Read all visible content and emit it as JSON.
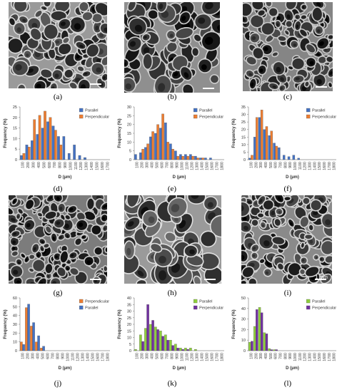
{
  "photos": [
    {
      "label": "(a)",
      "scale_text": ""
    },
    {
      "label": "(b)",
      "scale_text": ""
    },
    {
      "label": "(c)",
      "scale_text": ""
    },
    {
      "label": "(g)",
      "scale_text": ""
    },
    {
      "label": "(h)",
      "scale_text": ""
    },
    {
      "label": "(i)",
      "scale_text": "1 mm"
    }
  ],
  "chart_data": [
    {
      "panel": "(d)",
      "type": "bar",
      "xlabel": "D (µm)",
      "ylabel": "Frequency (%)",
      "ylim": [
        0,
        25
      ],
      "yticks": [
        0,
        5,
        10,
        15,
        20,
        25
      ],
      "categories": [
        "100",
        "200",
        "300",
        "400",
        "500",
        "600",
        "700",
        "800",
        "900",
        "1000",
        "1100",
        "1200",
        "1300",
        "1400",
        "1500",
        "1600",
        "1700"
      ],
      "legend": "top-right",
      "series": [
        {
          "name": "Parallel",
          "color": "#4472c4",
          "values": [
            2,
            7,
            9,
            12,
            15,
            18,
            16,
            11,
            11,
            3,
            7,
            2,
            1,
            0,
            0,
            0,
            0
          ]
        },
        {
          "name": "Perpendicular",
          "color": "#ed7d31",
          "values": [
            3,
            6,
            19,
            21,
            23,
            20,
            14,
            7,
            0,
            0,
            0,
            0,
            0,
            0,
            0,
            0,
            0
          ]
        }
      ],
      "legend_order": [
        0,
        1
      ]
    },
    {
      "panel": "(e)",
      "type": "bar",
      "xlabel": "D (µm)",
      "ylabel": "Frequency (%)",
      "ylim": [
        0,
        30
      ],
      "yticks": [
        0,
        5,
        10,
        15,
        20,
        25,
        30
      ],
      "categories": [
        "100",
        "200",
        "300",
        "400",
        "500",
        "600",
        "700",
        "800",
        "900",
        "1000",
        "1100",
        "1200",
        "1300",
        "1400",
        "1500",
        "1600",
        "1700",
        "1800"
      ],
      "legend": "top-right",
      "series": [
        {
          "name": "Parallel",
          "color": "#4472c4",
          "values": [
            3,
            4,
            7,
            13,
            15,
            18,
            21,
            9,
            5,
            3,
            3,
            3,
            2,
            1,
            1,
            1,
            0,
            0
          ]
        },
        {
          "name": "Perpendicular",
          "color": "#ed7d31",
          "values": [
            0,
            6,
            9,
            16,
            20,
            26,
            10,
            6,
            2,
            2,
            2,
            2,
            1,
            1,
            0,
            0,
            0,
            0
          ]
        }
      ],
      "legend_order": [
        0,
        1
      ]
    },
    {
      "panel": "(f)",
      "type": "bar",
      "xlabel": "D (µm)",
      "ylabel": "Frequency (%)",
      "ylim": [
        0,
        35
      ],
      "yticks": [
        0,
        5,
        10,
        15,
        20,
        25,
        30,
        35
      ],
      "categories": [
        "100",
        "200",
        "300",
        "400",
        "500",
        "600",
        "700",
        "800",
        "900",
        "1000",
        "1100",
        "1200",
        "1300",
        "1400",
        "1500",
        "1600",
        "1700",
        "1800"
      ],
      "legend": "top-right",
      "series": [
        {
          "name": "Parallel",
          "color": "#4472c4",
          "values": [
            1,
            15,
            28,
            20,
            16,
            11,
            8,
            3,
            2,
            3,
            1,
            0,
            0,
            0,
            0,
            0,
            0,
            0
          ]
        },
        {
          "name": "Perpendicular",
          "color": "#ed7d31",
          "values": [
            3,
            28,
            33,
            22,
            19,
            9,
            0,
            0,
            0,
            0,
            0,
            0,
            0,
            0,
            0,
            0,
            0,
            0
          ]
        }
      ],
      "legend_order": [
        0,
        1
      ]
    },
    {
      "panel": "(j)",
      "type": "bar",
      "xlabel": "D (µm)",
      "ylabel": "Frequency (%)",
      "ylim": [
        0,
        60
      ],
      "yticks": [
        0,
        10,
        20,
        30,
        40,
        50,
        60
      ],
      "categories": [
        "100",
        "200",
        "300",
        "400",
        "500",
        "600",
        "700",
        "800",
        "900",
        "1000",
        "1100",
        "1200",
        "1300",
        "1400",
        "1500",
        "1600",
        "1700",
        "1800"
      ],
      "legend": "top-right",
      "series": [
        {
          "name": "Perpendicular",
          "color": "#ed7d31",
          "values": [
            10,
            49,
            28,
            10,
            3,
            0,
            0,
            0,
            0,
            0,
            0,
            0,
            0,
            0,
            0,
            0,
            0,
            0
          ]
        },
        {
          "name": "Parallel",
          "color": "#4472c4",
          "values": [
            7,
            53,
            32,
            17,
            5,
            0,
            0,
            0,
            0,
            0,
            0,
            0,
            0,
            0,
            0,
            0,
            0,
            0
          ]
        }
      ],
      "legend_order": [
        0,
        1
      ]
    },
    {
      "panel": "(k)",
      "type": "bar",
      "xlabel": "D (µm)",
      "ylabel": "Frequency (%)",
      "ylim": [
        0,
        40
      ],
      "yticks": [
        0,
        5,
        10,
        15,
        20,
        25,
        30,
        35,
        40
      ],
      "categories": [
        "100",
        "200",
        "300",
        "400",
        "500",
        "600",
        "700",
        "800",
        "900",
        "1000",
        "1100",
        "1200",
        "1300",
        "1400",
        "1500",
        "1600",
        "1700",
        "1800"
      ],
      "legend": "top-right",
      "series": [
        {
          "name": "Parallel",
          "color": "#8fcf3c",
          "values": [
            1,
            12,
            17,
            20,
            18,
            15,
            12,
            8,
            5,
            2,
            2,
            2,
            1,
            0,
            0,
            0,
            0,
            0
          ]
        },
        {
          "name": "Perpendicular",
          "color": "#7030a0",
          "values": [
            0,
            7,
            35,
            23,
            16,
            11,
            8,
            4,
            2,
            1,
            1,
            0,
            0,
            0,
            0,
            0,
            0,
            0
          ]
        }
      ],
      "legend_order": [
        0,
        1
      ]
    },
    {
      "panel": "(l)",
      "type": "bar",
      "xlabel": "D (µm)",
      "ylabel": "Frequency (%)",
      "ylim": [
        0,
        50
      ],
      "yticks": [
        0,
        10,
        20,
        30,
        40,
        50
      ],
      "categories": [
        "100",
        "200",
        "300",
        "400",
        "500",
        "600",
        "700",
        "800",
        "900",
        "1000",
        "1100",
        "1200",
        "1300",
        "1400",
        "1500",
        "1600",
        "1700",
        "1800"
      ],
      "legend": "top-right",
      "series": [
        {
          "name": "Parallel",
          "color": "#8fcf3c",
          "values": [
            8,
            23,
            41,
            17,
            2,
            1,
            0,
            0,
            0,
            0,
            0,
            0,
            0,
            0,
            0,
            0,
            0,
            0
          ]
        },
        {
          "name": "Perpendicular",
          "color": "#7030a0",
          "values": [
            9,
            39,
            36,
            16,
            1,
            1,
            0,
            0,
            0,
            0,
            0,
            0,
            0,
            0,
            0,
            0,
            0,
            0
          ]
        }
      ],
      "legend_order": [
        0,
        1
      ]
    }
  ]
}
